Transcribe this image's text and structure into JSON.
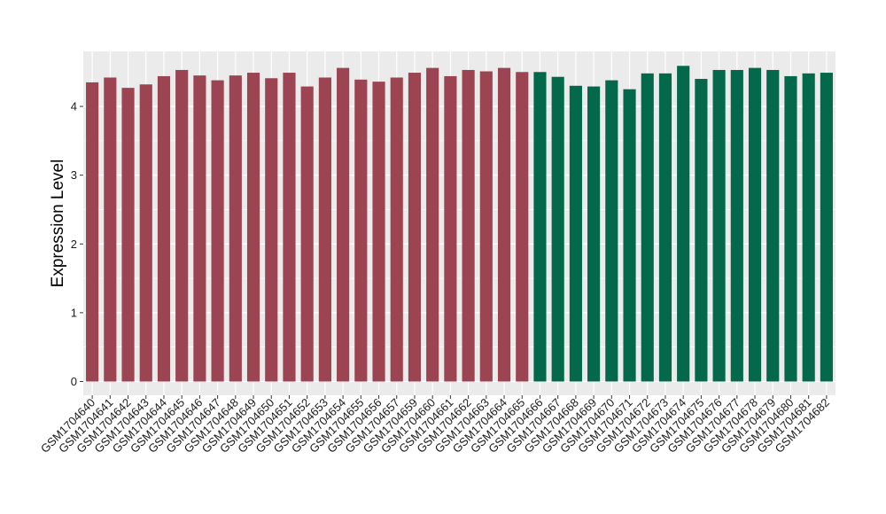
{
  "chart_data": {
    "type": "bar",
    "ylabel": "Expression Level",
    "xlabel": "",
    "ylim": [
      -0.2,
      4.8
    ],
    "yticks": [
      0,
      1,
      2,
      3,
      4
    ],
    "grid": true,
    "categories": [
      "GSM1704640",
      "GSM1704641",
      "GSM1704642",
      "GSM1704643",
      "GSM1704644",
      "GSM1704645",
      "GSM1704646",
      "GSM1704647",
      "GSM1704648",
      "GSM1704649",
      "GSM1704650",
      "GSM1704651",
      "GSM1704652",
      "GSM1704653",
      "GSM1704654",
      "GSM1704655",
      "GSM1704656",
      "GSM1704657",
      "GSM1704659",
      "GSM1704660",
      "GSM1704661",
      "GSM1704662",
      "GSM1704663",
      "GSM1704664",
      "GSM1704665",
      "GSM1704666",
      "GSM1704667",
      "GSM1704668",
      "GSM1704669",
      "GSM1704670",
      "GSM1704671",
      "GSM1704672",
      "GSM1704673",
      "GSM1704674",
      "GSM1704675",
      "GSM1704676",
      "GSM1704677",
      "GSM1704678",
      "GSM1704679",
      "GSM1704680",
      "GSM1704681",
      "GSM1704682"
    ],
    "values": [
      4.35,
      4.42,
      4.27,
      4.32,
      4.44,
      4.53,
      4.45,
      4.38,
      4.45,
      4.49,
      4.41,
      4.49,
      4.29,
      4.42,
      4.56,
      4.39,
      4.36,
      4.42,
      4.49,
      4.56,
      4.44,
      4.53,
      4.51,
      4.56,
      4.5,
      4.5,
      4.43,
      4.3,
      4.29,
      4.38,
      4.25,
      4.48,
      4.48,
      4.59,
      4.4,
      4.53,
      4.53,
      4.56,
      4.53,
      4.44,
      4.48,
      4.49
    ],
    "colors": [
      "#9c4452",
      "#9c4452",
      "#9c4452",
      "#9c4452",
      "#9c4452",
      "#9c4452",
      "#9c4452",
      "#9c4452",
      "#9c4452",
      "#9c4452",
      "#9c4452",
      "#9c4452",
      "#9c4452",
      "#9c4452",
      "#9c4452",
      "#9c4452",
      "#9c4452",
      "#9c4452",
      "#9c4452",
      "#9c4452",
      "#9c4452",
      "#9c4452",
      "#9c4452",
      "#9c4452",
      "#9c4452",
      "#04694a",
      "#04694a",
      "#04694a",
      "#04694a",
      "#04694a",
      "#04694a",
      "#04694a",
      "#04694a",
      "#04694a",
      "#04694a",
      "#04694a",
      "#04694a",
      "#04694a",
      "#04694a",
      "#04694a",
      "#04694a",
      "#04694a"
    ],
    "panel_background": "#ebebeb",
    "grid_color": "#ffffff"
  }
}
